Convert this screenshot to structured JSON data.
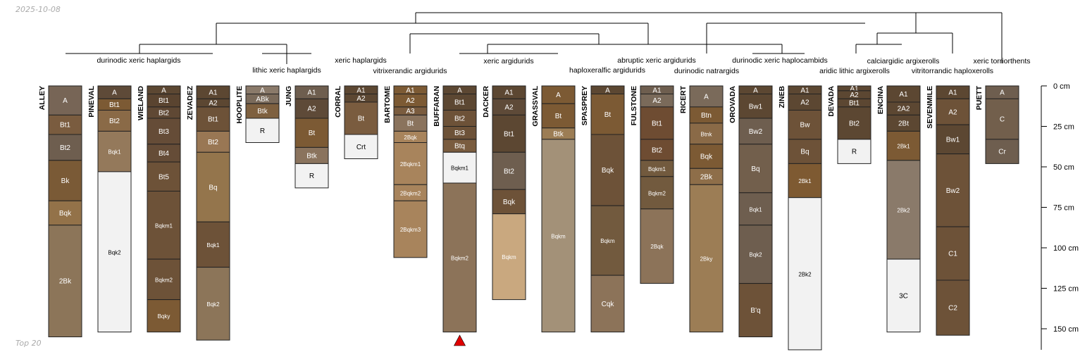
{
  "page": {
    "date": "2025-10-08",
    "footer": "Top 20"
  },
  "chart_data": {
    "type": "soil-profile-sketches",
    "depth_unit": "cm",
    "depth_range": [
      0,
      163
    ],
    "depth_ticks": [
      {
        "value": 0,
        "label": "0 cm"
      },
      {
        "value": 25,
        "label": "25 cm"
      },
      {
        "value": 50,
        "label": "50 cm"
      },
      {
        "value": 75,
        "label": "75 cm"
      },
      {
        "value": 100,
        "label": "100 cm"
      },
      {
        "value": 125,
        "label": "125 cm"
      },
      {
        "value": 150,
        "label": "150 cm"
      }
    ],
    "classification_labels": [
      {
        "text": "durinodic xeric haplargids"
      },
      {
        "text": "lithic xeric haplargids"
      },
      {
        "text": "xeric haplargids"
      },
      {
        "text": "vitrixerandic argidurids"
      },
      {
        "text": "xeric argidurids"
      },
      {
        "text": "abruptic xeric argidurids"
      },
      {
        "text": "haploxeralfic argidurids"
      },
      {
        "text": "durinodic natrargids"
      },
      {
        "text": "durinodic xeric haplocambids"
      },
      {
        "text": "aridic lithic argixerolls"
      },
      {
        "text": "calciargidic argixerolls"
      },
      {
        "text": "vitritorrandic haploxerolls"
      },
      {
        "text": "xeric torriorthents"
      }
    ],
    "profiles": [
      {
        "name": "ALLEY",
        "horizons": [
          {
            "n": "A",
            "t": 0,
            "b": 18,
            "c": "#776556"
          },
          {
            "n": "Bt1",
            "t": 18,
            "b": 30,
            "c": "#7a5c3f"
          },
          {
            "n": "Bt2",
            "t": 30,
            "b": 46,
            "c": "#6e5e4f"
          },
          {
            "n": "Bk",
            "t": 46,
            "b": 71,
            "c": "#7a5a36"
          },
          {
            "n": "Bqk",
            "t": 71,
            "b": 86,
            "c": "#937249"
          },
          {
            "n": "2Bk",
            "t": 86,
            "b": 155,
            "c": "#8c7559"
          }
        ]
      },
      {
        "name": "PINEVAL",
        "horizons": [
          {
            "n": "A",
            "t": 0,
            "b": 8,
            "c": "#5e4a38"
          },
          {
            "n": "Bt1",
            "t": 8,
            "b": 15,
            "c": "#7c5a34"
          },
          {
            "n": "Bt2",
            "t": 15,
            "b": 28,
            "c": "#8a6a47"
          },
          {
            "n": "Bqk1",
            "t": 28,
            "b": 53,
            "c": "#94795b"
          },
          {
            "n": "Bqk2",
            "t": 53,
            "b": 152,
            "c": "#f2f2f2"
          }
        ]
      },
      {
        "name": "WIELAND",
        "horizons": [
          {
            "n": "A",
            "t": 0,
            "b": 5,
            "c": "#5c4732"
          },
          {
            "n": "Bt1",
            "t": 5,
            "b": 13,
            "c": "#5a4430"
          },
          {
            "n": "Bt2",
            "t": 13,
            "b": 20,
            "c": "#5f4834"
          },
          {
            "n": "Bt3",
            "t": 20,
            "b": 36,
            "c": "#654c37"
          },
          {
            "n": "Bt4",
            "t": 36,
            "b": 47,
            "c": "#654c37"
          },
          {
            "n": "Bt5",
            "t": 47,
            "b": 65,
            "c": "#6d5238"
          },
          {
            "n": "Bqkm1",
            "t": 65,
            "b": 107,
            "c": "#6d5238"
          },
          {
            "n": "Bqkm2",
            "t": 107,
            "b": 132,
            "c": "#6d5238"
          },
          {
            "n": "Bqky",
            "t": 132,
            "b": 152,
            "c": "#7c5a34"
          }
        ]
      },
      {
        "name": "ZEVADEZ",
        "horizons": [
          {
            "n": "A1",
            "t": 0,
            "b": 8,
            "c": "#5c4732"
          },
          {
            "n": "A2",
            "t": 8,
            "b": 13,
            "c": "#5c4732"
          },
          {
            "n": "Bt1",
            "t": 13,
            "b": 28,
            "c": "#6d5238"
          },
          {
            "n": "Bt2",
            "t": 28,
            "b": 41,
            "c": "#997754"
          },
          {
            "n": "Bq",
            "t": 41,
            "b": 84,
            "c": "#94754c"
          },
          {
            "n": "Bqk1",
            "t": 84,
            "b": 112,
            "c": "#6d5238"
          },
          {
            "n": "Bqk2",
            "t": 112,
            "b": 157,
            "c": "#8c7559"
          }
        ]
      },
      {
        "name": "HOOPLITE",
        "horizons": [
          {
            "n": "A",
            "t": 0,
            "b": 5,
            "c": "#8a7a6a"
          },
          {
            "n": "ABk",
            "t": 5,
            "b": 11,
            "c": "#7a6a5a"
          },
          {
            "n": "Btk",
            "t": 11,
            "b": 20,
            "c": "#7e603f"
          },
          {
            "n": "R",
            "t": 20,
            "b": 35,
            "c": "#f2f2f2"
          }
        ]
      },
      {
        "name": "JUNG",
        "horizons": [
          {
            "n": "A1",
            "t": 0,
            "b": 8,
            "c": "#6e5e4f"
          },
          {
            "n": "A2",
            "t": 8,
            "b": 20,
            "c": "#5e4a38"
          },
          {
            "n": "Bt",
            "t": 20,
            "b": 38,
            "c": "#7c5a34"
          },
          {
            "n": "Btk",
            "t": 38,
            "b": 48,
            "c": "#8a735d"
          },
          {
            "n": "R",
            "t": 48,
            "b": 63,
            "c": "#f2f2f2"
          }
        ]
      },
      {
        "name": "CORRAL",
        "horizons": [
          {
            "n": "A1",
            "t": 0,
            "b": 5,
            "c": "#5c4732"
          },
          {
            "n": "A2",
            "t": 5,
            "b": 10,
            "c": "#5c4732"
          },
          {
            "n": "Bt",
            "t": 10,
            "b": 30,
            "c": "#7a5c3f"
          },
          {
            "n": "Crt",
            "t": 30,
            "b": 45,
            "c": "#f2f2f2"
          }
        ]
      },
      {
        "name": "BARTOME",
        "horizons": [
          {
            "n": "A1",
            "t": 0,
            "b": 5,
            "c": "#7c5a34"
          },
          {
            "n": "A2",
            "t": 5,
            "b": 13,
            "c": "#7c5a34"
          },
          {
            "n": "A3",
            "t": 13,
            "b": 18,
            "c": "#7a5c3f"
          },
          {
            "n": "Bt",
            "t": 18,
            "b": 28,
            "c": "#8a735d"
          },
          {
            "n": "2Bqk",
            "t": 28,
            "b": 35,
            "c": "#a8845c"
          },
          {
            "n": "2Bqkm1",
            "t": 35,
            "b": 61,
            "c": "#a8845c"
          },
          {
            "n": "2Bqkm2",
            "t": 61,
            "b": 71,
            "c": "#a8845c"
          },
          {
            "n": "2Bqkm3",
            "t": 71,
            "b": 106,
            "c": "#a8845c"
          }
        ]
      },
      {
        "name": "BUFFARAN",
        "horizons": [
          {
            "n": "A",
            "t": 0,
            "b": 5,
            "c": "#5c4732"
          },
          {
            "n": "Bt1",
            "t": 5,
            "b": 15,
            "c": "#5c4732"
          },
          {
            "n": "Bt2",
            "t": 15,
            "b": 25,
            "c": "#6d5238"
          },
          {
            "n": "Bt3",
            "t": 25,
            "b": 33,
            "c": "#6d5238"
          },
          {
            "n": "Btq",
            "t": 33,
            "b": 41,
            "c": "#7a5c3f"
          },
          {
            "n": "Bqkm1",
            "t": 41,
            "b": 60,
            "c": "#f2f2f2"
          },
          {
            "n": "Bqkm2",
            "t": 60,
            "b": 152,
            "c": "#8c7359"
          }
        ]
      },
      {
        "name": "DACKER",
        "horizons": [
          {
            "n": "A1",
            "t": 0,
            "b": 8,
            "c": "#5c4732"
          },
          {
            "n": "A2",
            "t": 8,
            "b": 18,
            "c": "#5e4a38"
          },
          {
            "n": "Bt1",
            "t": 18,
            "b": 41,
            "c": "#5c4732"
          },
          {
            "n": "Bt2",
            "t": 41,
            "b": 64,
            "c": "#6e5e4f"
          },
          {
            "n": "Bqk",
            "t": 64,
            "b": 79,
            "c": "#6d5238"
          },
          {
            "n": "Bqkm",
            "t": 79,
            "b": 132,
            "c": "#c9a87f"
          }
        ]
      },
      {
        "name": "GRASSVAL",
        "horizons": [
          {
            "n": "A",
            "t": 0,
            "b": 11,
            "c": "#7c5a34"
          },
          {
            "n": "Bt",
            "t": 11,
            "b": 26,
            "c": "#7c5a34"
          },
          {
            "n": "Btk",
            "t": 26,
            "b": 33,
            "c": "#9c7d55"
          },
          {
            "n": "Bqkm",
            "t": 33,
            "b": 152,
            "c": "#a39178"
          }
        ]
      },
      {
        "name": "SPASPREY",
        "horizons": [
          {
            "n": "A",
            "t": 0,
            "b": 5,
            "c": "#5c4732"
          },
          {
            "n": "Bt",
            "t": 5,
            "b": 30,
            "c": "#7c5a34"
          },
          {
            "n": "Bqk",
            "t": 30,
            "b": 74,
            "c": "#6d5238"
          },
          {
            "n": "Bqkm",
            "t": 74,
            "b": 117,
            "c": "#725a3e"
          },
          {
            "n": "Cqk",
            "t": 117,
            "b": 152,
            "c": "#8c7359"
          }
        ]
      },
      {
        "name": "FULSTONE",
        "horizons": [
          {
            "n": "A1",
            "t": 0,
            "b": 5,
            "c": "#6e5e4f"
          },
          {
            "n": "A2",
            "t": 5,
            "b": 13,
            "c": "#7a6a5a"
          },
          {
            "n": "Bt1",
            "t": 13,
            "b": 33,
            "c": "#6e4c32"
          },
          {
            "n": "Bt2",
            "t": 33,
            "b": 46,
            "c": "#6e4c32"
          },
          {
            "n": "Bqkm1",
            "t": 46,
            "b": 56,
            "c": "#725a3e"
          },
          {
            "n": "Bqkm2",
            "t": 56,
            "b": 76,
            "c": "#725a3e"
          },
          {
            "n": "2Bqk",
            "t": 76,
            "b": 122,
            "c": "#8c7359"
          }
        ]
      },
      {
        "name": "RICERT",
        "horizons": [
          {
            "n": "A",
            "t": 0,
            "b": 13,
            "c": "#7a6a5a"
          },
          {
            "n": "Btn",
            "t": 13,
            "b": 23,
            "c": "#7c5a34"
          },
          {
            "n": "Btnk",
            "t": 23,
            "b": 36,
            "c": "#8a6a47"
          },
          {
            "n": "Bqk",
            "t": 36,
            "b": 51,
            "c": "#7c5a34"
          },
          {
            "n": "2Bk",
            "t": 51,
            "b": 61,
            "c": "#8e6e49"
          },
          {
            "n": "2Bky",
            "t": 61,
            "b": 152,
            "c": "#9c7d55"
          }
        ]
      },
      {
        "name": "OROVADA",
        "horizons": [
          {
            "n": "A",
            "t": 0,
            "b": 5,
            "c": "#5c4732"
          },
          {
            "n": "Bw1",
            "t": 5,
            "b": 20,
            "c": "#5c4732"
          },
          {
            "n": "Bw2",
            "t": 20,
            "b": 36,
            "c": "#6e5e4f"
          },
          {
            "n": "Bq",
            "t": 36,
            "b": 66,
            "c": "#725f4c"
          },
          {
            "n": "Bqk1",
            "t": 66,
            "b": 86,
            "c": "#6e5e4f"
          },
          {
            "n": "Bqk2",
            "t": 86,
            "b": 122,
            "c": "#6e5e4f"
          },
          {
            "n": "B'q",
            "t": 122,
            "b": 155,
            "c": "#6d5238"
          }
        ]
      },
      {
        "name": "ZINEB",
        "horizons": [
          {
            "n": "A1",
            "t": 0,
            "b": 5,
            "c": "#5c4732"
          },
          {
            "n": "A2",
            "t": 5,
            "b": 15,
            "c": "#5c4732"
          },
          {
            "n": "Bw",
            "t": 15,
            "b": 33,
            "c": "#6d5238"
          },
          {
            "n": "Bq",
            "t": 33,
            "b": 48,
            "c": "#6d5238"
          },
          {
            "n": "2Bk1",
            "t": 48,
            "b": 69,
            "c": "#7e5a32"
          },
          {
            "n": "2Bk2",
            "t": 69,
            "b": 163,
            "c": "#f2f2f2"
          }
        ]
      },
      {
        "name": "DEVADA",
        "horizons": [
          {
            "n": "A1",
            "t": 0,
            "b": 3,
            "c": "#5c4732"
          },
          {
            "n": "A2",
            "t": 3,
            "b": 8,
            "c": "#5c4732"
          },
          {
            "n": "Bt1",
            "t": 8,
            "b": 13,
            "c": "#5c4732"
          },
          {
            "n": "Bt2",
            "t": 13,
            "b": 33,
            "c": "#5c4732"
          },
          {
            "n": "R",
            "t": 33,
            "b": 48,
            "c": "#f2f2f2"
          }
        ]
      },
      {
        "name": "ENCINA",
        "horizons": [
          {
            "n": "A1",
            "t": 0,
            "b": 10,
            "c": "#5c4732"
          },
          {
            "n": "2A2",
            "t": 10,
            "b": 18,
            "c": "#5c4732"
          },
          {
            "n": "2Bt",
            "t": 18,
            "b": 28,
            "c": "#5c4732"
          },
          {
            "n": "2Bk1",
            "t": 28,
            "b": 46,
            "c": "#7c5a34"
          },
          {
            "n": "2Bk2",
            "t": 46,
            "b": 107,
            "c": "#8a7a6a"
          },
          {
            "n": "3C",
            "t": 107,
            "b": 152,
            "c": "#f2f2f2"
          }
        ]
      },
      {
        "name": "SEVENMILE",
        "horizons": [
          {
            "n": "A1",
            "t": 0,
            "b": 8,
            "c": "#5c4732"
          },
          {
            "n": "A2",
            "t": 8,
            "b": 24,
            "c": "#6d5238"
          },
          {
            "n": "Bw1",
            "t": 24,
            "b": 42,
            "c": "#5c4732"
          },
          {
            "n": "Bw2",
            "t": 42,
            "b": 87,
            "c": "#6d5238"
          },
          {
            "n": "C1",
            "t": 87,
            "b": 120,
            "c": "#6d5238"
          },
          {
            "n": "C2",
            "t": 120,
            "b": 154,
            "c": "#6d5238"
          }
        ]
      },
      {
        "name": "PUETT",
        "horizons": [
          {
            "n": "A",
            "t": 0,
            "b": 8,
            "c": "#6e5e4f"
          },
          {
            "n": "C",
            "t": 8,
            "b": 33,
            "c": "#725f4c"
          },
          {
            "n": "Cr",
            "t": 33,
            "b": 48,
            "c": "#6e5e4f"
          }
        ]
      }
    ]
  }
}
